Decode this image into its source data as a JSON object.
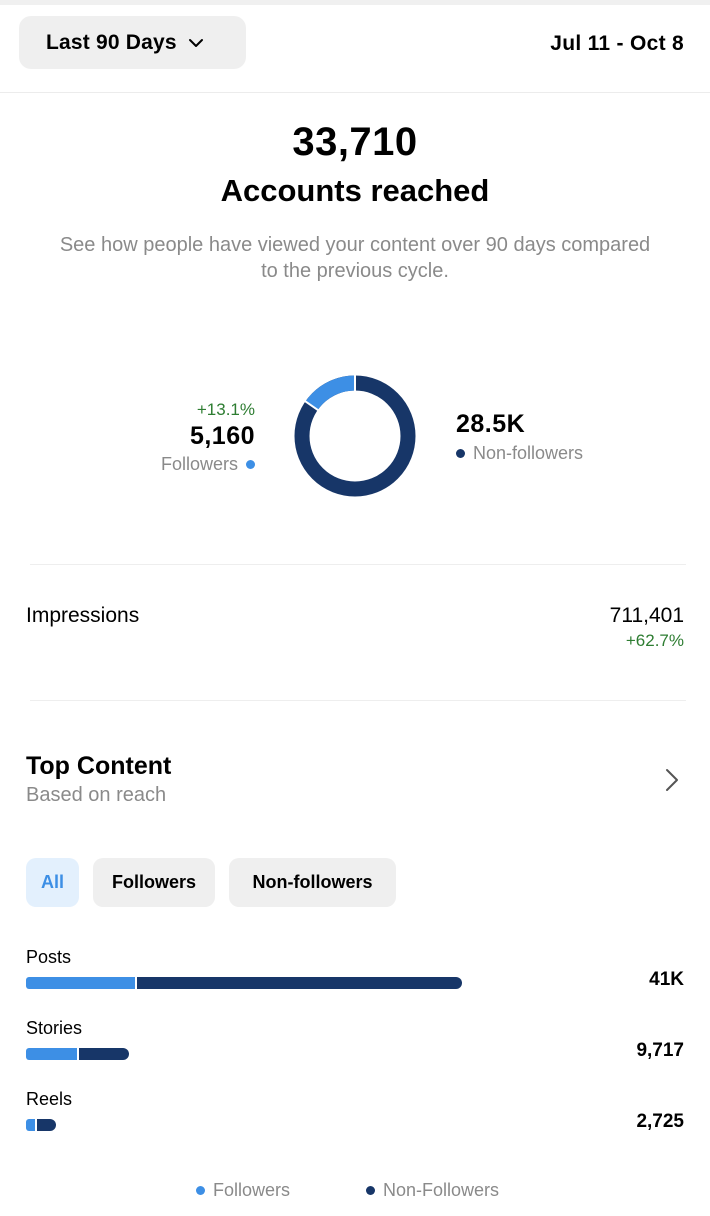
{
  "header": {
    "range_label": "Last 90 Days",
    "date_range": "Jul 11 - Oct 8"
  },
  "summary": {
    "accounts_reached_value": "33,710",
    "accounts_reached_label": "Accounts reached",
    "description": "See how people have viewed your content over 90 days compared to the previous cycle."
  },
  "audience": {
    "followers": {
      "change": "+13.1%",
      "value": "5,160",
      "label": "Followers",
      "share": 0.153
    },
    "non_followers": {
      "value": "28.5K",
      "label": "Non-followers",
      "share": 0.847
    }
  },
  "impressions": {
    "label": "Impressions",
    "value": "711,401",
    "change": "+62.7%"
  },
  "top_content": {
    "title": "Top Content",
    "subtitle": "Based on reach",
    "filters": [
      {
        "label": "All",
        "selected": true
      },
      {
        "label": "Followers",
        "selected": false
      },
      {
        "label": "Non-followers",
        "selected": false
      }
    ],
    "rows": [
      {
        "label": "Posts",
        "value": "41K",
        "followers_fraction": 0.25,
        "total_fraction": 1.0
      },
      {
        "label": "Stories",
        "value": "9,717",
        "followers_fraction": 0.5,
        "total_fraction": 0.237
      },
      {
        "label": "Reels",
        "value": "2,725",
        "followers_fraction": 0.33,
        "total_fraction": 0.066
      }
    ]
  },
  "legend": {
    "followers": "Followers",
    "non_followers": "Non-Followers"
  },
  "colors": {
    "followers": "#3d8fe5",
    "non_followers": "#173668",
    "positive_change": "#2e7d32",
    "muted_text": "#8a8a8a",
    "chip_selected_bg": "#e3f0fd"
  }
}
